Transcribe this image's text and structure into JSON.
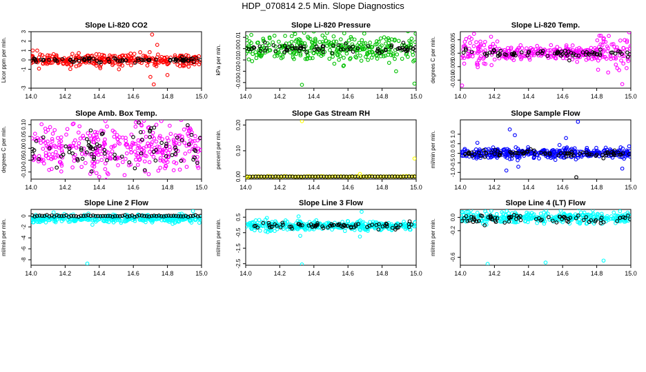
{
  "main_title": "HDP_070814  2.5 Min. Slope Diagnostics",
  "colors": {
    "black": "#000000",
    "red": "#ff0000",
    "green": "#00c000",
    "magenta": "#ff00ff",
    "yellow": "#ffff00",
    "blue": "#0000ff",
    "cyan": "#00ffff"
  },
  "chart_data": [
    {
      "type": "scatter",
      "title": "Slope Li-820 CO2",
      "ylabel": "Licor ppm per min.",
      "xlim": [
        14.0,
        15.0
      ],
      "ylim": [
        -3,
        3
      ],
      "xticks": [
        "14.0",
        "14.2",
        "14.4",
        "14.6",
        "14.8",
        "15.0"
      ],
      "yticks": [
        {
          "v": -3,
          "l": "-3"
        },
        {
          "v": -1,
          "l": "-1"
        },
        {
          "v": 0,
          "l": "0"
        },
        {
          "v": 1,
          "l": "1"
        },
        {
          "v": 2,
          "l": "2"
        },
        {
          "v": 3,
          "l": "3"
        }
      ],
      "series": [
        {
          "name": "slope",
          "color": "red",
          "center": 0.0,
          "spread": 0.35,
          "count": 330
        },
        {
          "name": "reference",
          "color": "black",
          "center": 0.0,
          "spread": 0.12,
          "count": 75
        }
      ],
      "outliers": [
        {
          "x": 14.71,
          "y": 2.7,
          "color": "red"
        },
        {
          "x": 14.72,
          "y": -2.6,
          "color": "red"
        },
        {
          "x": 14.74,
          "y": 1.6,
          "color": "red"
        },
        {
          "x": 14.8,
          "y": -1.6,
          "color": "red"
        },
        {
          "x": 14.7,
          "y": -1.8,
          "color": "red"
        },
        {
          "x": 14.01,
          "y": 1.0,
          "color": "red"
        }
      ]
    },
    {
      "type": "scatter",
      "title": "Slope Li-820 Pressure",
      "ylabel": "kPa per min.",
      "xlim": [
        14.0,
        15.0
      ],
      "ylim": [
        -0.035,
        0.015
      ],
      "xticks": [
        "14.0",
        "14.2",
        "14.4",
        "14.6",
        "14.8",
        "15.0"
      ],
      "yticks": [
        {
          "v": -0.03,
          "l": "-0.03"
        },
        {
          "v": -0.02,
          "l": "-0.02"
        },
        {
          "v": -0.01,
          "l": "-0.01"
        },
        {
          "v": 0,
          "l": "0.00"
        },
        {
          "v": 0.01,
          "l": "0.01"
        }
      ],
      "series": [
        {
          "name": "slope",
          "color": "green",
          "center": 0.0,
          "spread": 0.006,
          "count": 330
        },
        {
          "name": "reference",
          "color": "black",
          "center": 0.0,
          "spread": 0.002,
          "count": 75
        }
      ],
      "outliers": [
        {
          "x": 14.33,
          "y": -0.032,
          "color": "green"
        },
        {
          "x": 14.99,
          "y": -0.031,
          "color": "green"
        },
        {
          "x": 14.29,
          "y": 0.013,
          "color": "green"
        }
      ]
    },
    {
      "type": "scatter",
      "title": "Slope Li-820 Temp.",
      "ylabel": "degrees C per min.",
      "xlim": [
        14.0,
        15.0
      ],
      "ylim": [
        -0.013,
        0.008
      ],
      "xticks": [
        "14.0",
        "14.2",
        "14.4",
        "14.6",
        "14.8",
        "15.0"
      ],
      "yticks": [
        {
          "v": -0.01,
          "l": "-0.010"
        },
        {
          "v": -0.005,
          "l": "-0.005"
        },
        {
          "v": 0,
          "l": "0.000"
        },
        {
          "v": 0.005,
          "l": "0.005"
        }
      ],
      "series": [
        {
          "name": "slope",
          "color": "magenta",
          "center": 0.0,
          "spread": 0.0012,
          "count": 330,
          "burst": [
            [
              14.0,
              14.22,
              0.0032
            ],
            [
              14.8,
              15.0,
              0.0032
            ]
          ]
        },
        {
          "name": "reference",
          "color": "black",
          "center": 0.0,
          "spread": 0.0006,
          "count": 75
        }
      ],
      "outliers": [
        {
          "x": 14.08,
          "y": 0.0072,
          "color": "magenta"
        },
        {
          "x": 14.99,
          "y": 0.0078,
          "color": "magenta"
        },
        {
          "x": 14.01,
          "y": -0.012,
          "color": "magenta"
        },
        {
          "x": 14.95,
          "y": -0.0115,
          "color": "magenta"
        }
      ]
    },
    {
      "type": "scatter",
      "title": "Slope Amb. Box Temp.",
      "ylabel": "degrees C per min.",
      "xlim": [
        14.0,
        15.0
      ],
      "ylim": [
        -0.13,
        0.12
      ],
      "xticks": [
        "14.0",
        "14.2",
        "14.4",
        "14.6",
        "14.8",
        "15.0"
      ],
      "yticks": [
        {
          "v": -0.1,
          "l": "-0.10"
        },
        {
          "v": -0.05,
          "l": "-0.05"
        },
        {
          "v": 0,
          "l": "0.00"
        },
        {
          "v": 0.05,
          "l": "0.05"
        },
        {
          "v": 0.1,
          "l": "0.10"
        }
      ],
      "series": [
        {
          "name": "slope",
          "color": "magenta",
          "center": 0.0,
          "spread": 0.05,
          "count": 360
        },
        {
          "name": "reference",
          "color": "black",
          "center": 0.0,
          "spread": 0.045,
          "count": 80
        }
      ],
      "outliers": [
        {
          "x": 14.4,
          "y": -0.12,
          "color": "magenta"
        }
      ]
    },
    {
      "type": "scatter",
      "title": "Slope Gas Stream RH",
      "ylabel": "percent per min.",
      "xlim": [
        14.0,
        15.0
      ],
      "ylim": [
        -0.01,
        0.22
      ],
      "xticks": [
        "14.0",
        "14.2",
        "14.4",
        "14.6",
        "14.8",
        "15.0"
      ],
      "yticks": [
        {
          "v": 0,
          "l": "0.00"
        },
        {
          "v": 0.1,
          "l": "0.10"
        },
        {
          "v": 0.2,
          "l": "0.20"
        }
      ],
      "series": [
        {
          "name": "slope",
          "color": "yellow",
          "center": 0.0,
          "spread": 0.0008,
          "count": 110,
          "regular": true
        },
        {
          "name": "reference",
          "color": "black",
          "center": 0.0,
          "spread": 0.0003,
          "count": 60,
          "regular": true
        }
      ],
      "outliers": [
        {
          "x": 14.33,
          "y": 0.215,
          "color": "yellow"
        },
        {
          "x": 14.99,
          "y": 0.07,
          "color": "yellow"
        },
        {
          "x": 14.67,
          "y": 0.01,
          "color": "yellow"
        },
        {
          "x": 14.01,
          "y": -0.003,
          "color": "yellow"
        }
      ]
    },
    {
      "type": "scatter",
      "title": "Slope Sample Flow",
      "ylabel": "ml/min per min.",
      "xlim": [
        14.0,
        15.0
      ],
      "ylim": [
        -1.35,
        1.75
      ],
      "xticks": [
        "14.0",
        "14.2",
        "14.4",
        "14.6",
        "14.8",
        "15.0"
      ],
      "yticks": [
        {
          "v": -1,
          "l": "-1.0"
        },
        {
          "v": -0.5,
          "l": "-0.5"
        },
        {
          "v": 0,
          "l": "0.0"
        },
        {
          "v": 0.5,
          "l": "0.5"
        },
        {
          "v": 1,
          "l": "1.0"
        }
      ],
      "series": [
        {
          "name": "slope",
          "color": "blue",
          "center": 0.0,
          "spread": 0.13,
          "count": 380
        },
        {
          "name": "reference",
          "color": "black",
          "center": 0.0,
          "spread": 0.08,
          "count": 80
        }
      ],
      "outliers": [
        {
          "x": 14.69,
          "y": 1.65,
          "color": "blue"
        },
        {
          "x": 14.29,
          "y": 1.25,
          "color": "blue"
        },
        {
          "x": 14.32,
          "y": 0.95,
          "color": "blue"
        },
        {
          "x": 14.27,
          "y": -0.9,
          "color": "blue"
        },
        {
          "x": 14.34,
          "y": -0.7,
          "color": "blue"
        },
        {
          "x": 14.68,
          "y": -1.25,
          "color": "black"
        },
        {
          "x": 14.62,
          "y": 0.8,
          "color": "blue"
        },
        {
          "x": 14.95,
          "y": -0.8,
          "color": "blue"
        },
        {
          "x": 14.1,
          "y": 0.55,
          "color": "blue"
        }
      ]
    },
    {
      "type": "scatter",
      "title": "Slope Line 2 Flow",
      "ylabel": "ml/min per min.",
      "xlim": [
        14.0,
        15.0
      ],
      "ylim": [
        -9,
        1.2
      ],
      "xticks": [
        "14.0",
        "14.2",
        "14.4",
        "14.6",
        "14.8",
        "15.0"
      ],
      "yticks": [
        {
          "v": -8,
          "l": "-8"
        },
        {
          "v": -6,
          "l": "-6"
        },
        {
          "v": -4,
          "l": "-4"
        },
        {
          "v": -2,
          "l": "-2"
        },
        {
          "v": 0,
          "l": "0"
        }
      ],
      "series": [
        {
          "name": "slope",
          "color": "cyan",
          "center": -0.5,
          "spread": 0.35,
          "count": 360
        },
        {
          "name": "reference",
          "color": "black",
          "center": 0.0,
          "spread": 0.08,
          "count": 70,
          "regular": true
        }
      ],
      "outliers": [
        {
          "x": 14.33,
          "y": -8.7,
          "color": "cyan"
        },
        {
          "x": 14.36,
          "y": -1.6,
          "color": "cyan"
        },
        {
          "x": 14.95,
          "y": 0.9,
          "color": "cyan"
        }
      ]
    },
    {
      "type": "scatter",
      "title": "Slope Line 3 Flow",
      "ylabel": "ml/min per min.",
      "xlim": [
        14.0,
        15.0
      ],
      "ylim": [
        -2.6,
        1.0
      ],
      "xticks": [
        "14.0",
        "14.2",
        "14.4",
        "14.6",
        "14.8",
        "15.0"
      ],
      "yticks": [
        {
          "v": -2.5,
          "l": "-2.5"
        },
        {
          "v": -1.5,
          "l": "-1.5"
        },
        {
          "v": -0.5,
          "l": "-0.5"
        },
        {
          "v": 0.5,
          "l": "0.5"
        }
      ],
      "series": [
        {
          "name": "slope",
          "color": "cyan",
          "center": -0.05,
          "spread": 0.14,
          "count": 360
        },
        {
          "name": "reference",
          "color": "black",
          "center": -0.05,
          "spread": 0.1,
          "count": 75
        }
      ],
      "outliers": [
        {
          "x": 14.33,
          "y": -2.55,
          "color": "cyan"
        },
        {
          "x": 14.68,
          "y": 0.85,
          "color": "cyan"
        },
        {
          "x": 14.32,
          "y": -0.7,
          "color": "cyan"
        },
        {
          "x": 14.67,
          "y": -0.75,
          "color": "cyan"
        },
        {
          "x": 14.31,
          "y": 0.55,
          "color": "cyan"
        }
      ]
    },
    {
      "type": "scatter",
      "title": "Slope Line 4 (LT) Flow",
      "ylabel": "ml/min per min.",
      "xlim": [
        14.0,
        15.0
      ],
      "ylim": [
        -0.72,
        0.12
      ],
      "xticks": [
        "14.0",
        "14.2",
        "14.4",
        "14.6",
        "14.8",
        "15.0"
      ],
      "yticks": [
        {
          "v": -0.6,
          "l": "-0.6"
        },
        {
          "v": -0.2,
          "l": "-0.2"
        },
        {
          "v": 0,
          "l": "0.0"
        }
      ],
      "series": [
        {
          "name": "slope",
          "color": "cyan",
          "center": 0.0,
          "spread": 0.045,
          "count": 360
        },
        {
          "name": "reference",
          "color": "black",
          "center": -0.02,
          "spread": 0.035,
          "count": 75
        }
      ],
      "outliers": [
        {
          "x": 14.16,
          "y": -0.7,
          "color": "cyan"
        },
        {
          "x": 14.5,
          "y": -0.68,
          "color": "cyan"
        },
        {
          "x": 14.84,
          "y": -0.65,
          "color": "cyan"
        }
      ]
    }
  ]
}
